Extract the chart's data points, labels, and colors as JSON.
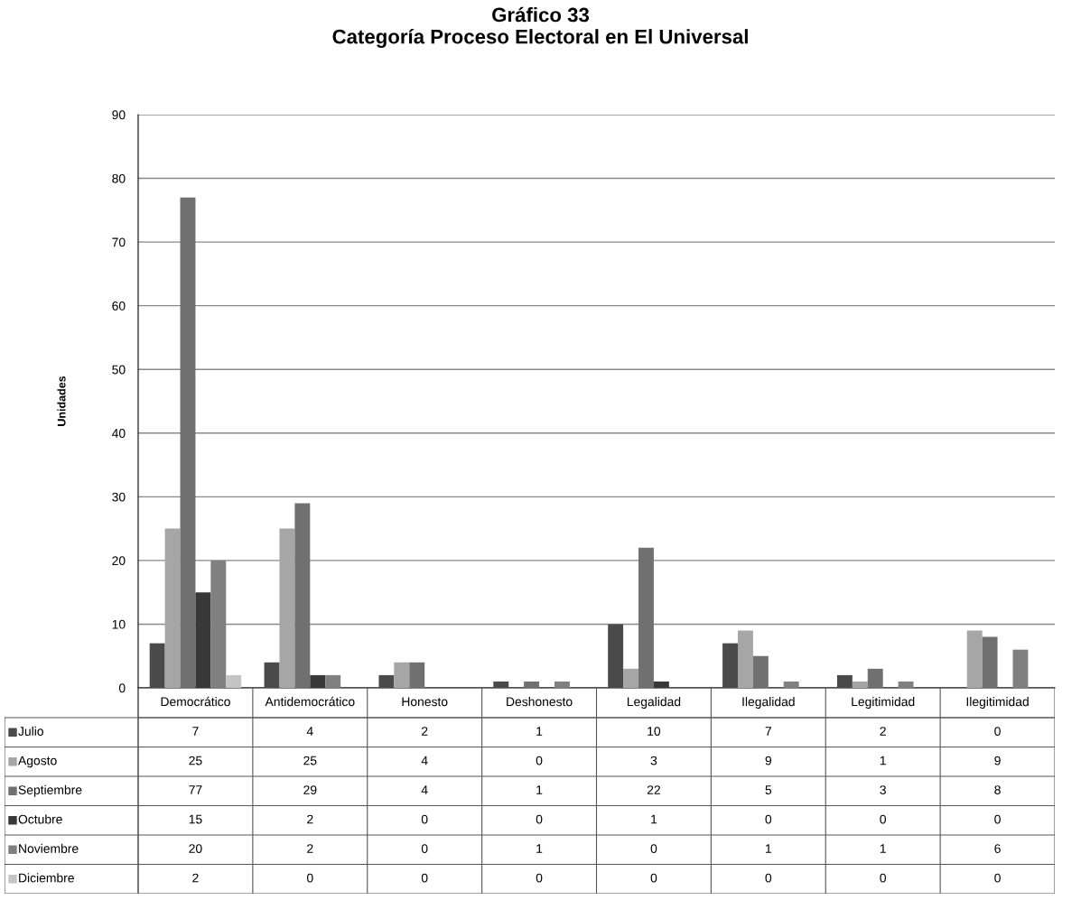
{
  "chart_data": {
    "type": "bar",
    "title": "Gráfico 33\nCategoría Proceso Electoral en El Universal",
    "ylabel": "Unidades",
    "categories": [
      "Democrático",
      "Antidemocrático",
      "Honesto",
      "Deshonesto",
      "Legalidad",
      "Ilegalidad",
      "Legitimidad",
      "Ilegitimidad"
    ],
    "series": [
      {
        "name": "Julio",
        "color": "#4a4a4a",
        "values": [
          7,
          4,
          2,
          1,
          10,
          7,
          2,
          0
        ]
      },
      {
        "name": "Agosto",
        "color": "#a6a6a6",
        "values": [
          25,
          25,
          4,
          0,
          3,
          9,
          1,
          9
        ]
      },
      {
        "name": "Septiembre",
        "color": "#707070",
        "values": [
          77,
          29,
          4,
          1,
          22,
          5,
          3,
          8
        ]
      },
      {
        "name": "Octubre",
        "color": "#383838",
        "values": [
          15,
          2,
          0,
          0,
          1,
          0,
          0,
          0
        ]
      },
      {
        "name": "Noviembre",
        "color": "#808080",
        "values": [
          20,
          2,
          0,
          1,
          0,
          1,
          1,
          6
        ]
      },
      {
        "name": "Diciembre",
        "color": "#c4c4c4",
        "values": [
          2,
          0,
          0,
          0,
          0,
          0,
          0,
          0
        ]
      }
    ],
    "ylim": [
      0,
      90
    ],
    "yticks": [
      0,
      10,
      20,
      30,
      40,
      50,
      60,
      70,
      80,
      90
    ],
    "grid": "y",
    "legend": "bottom left",
    "data_labels": true
  }
}
